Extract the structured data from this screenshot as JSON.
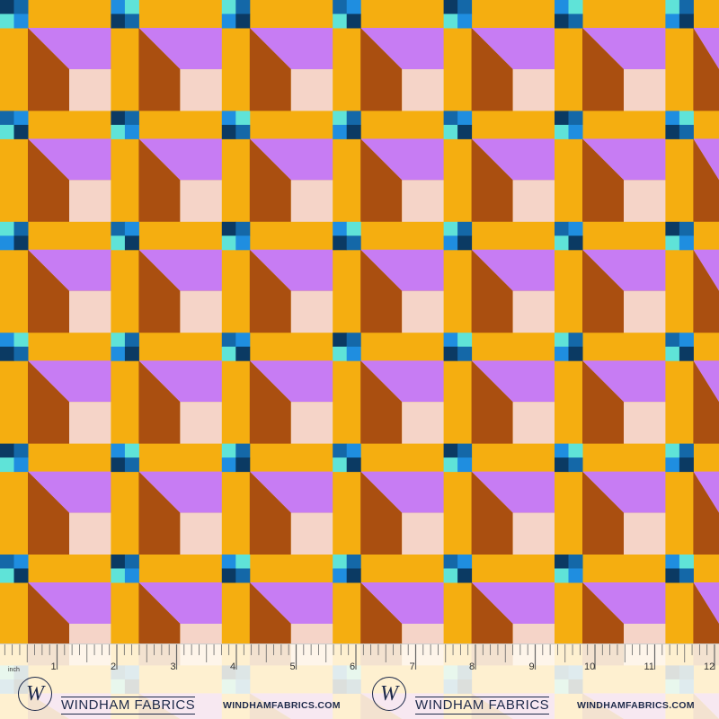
{
  "colors": {
    "yellow": "#f5ae10",
    "purple": "#c77cf3",
    "brown": "#aa4f10",
    "pink": "#f5d4c8",
    "navy": "#0b3a63",
    "mid_blue": "#1468a8",
    "bright_blue": "#1f8ee0",
    "cyan": "#5fe3d8"
  },
  "ruler": {
    "unit": "inch",
    "labels": [
      "1",
      "2",
      "3",
      "4",
      "5",
      "6",
      "7",
      "8",
      "9",
      "10",
      "11",
      "12"
    ]
  },
  "branding": [
    {
      "logo_letter": "W",
      "name": "WINDHAM FABRICS",
      "url": "WINDHAMFABRICS.COM"
    },
    {
      "logo_letter": "W",
      "name": "WINDHAM FABRICS",
      "url": "WINDHAMFABRICS.COM"
    }
  ]
}
